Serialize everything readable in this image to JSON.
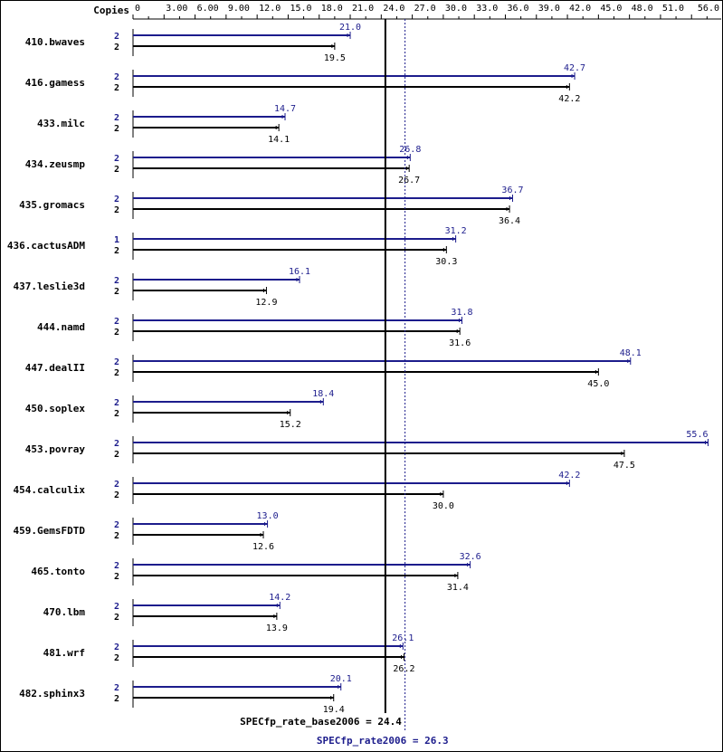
{
  "chart_data": {
    "type": "bar",
    "orientation": "horizontal",
    "copies_header": "Copies",
    "x_ticks": [
      "0",
      "3.00",
      "6.00",
      "9.00",
      "12.0",
      "15.0",
      "18.0",
      "21.0",
      "24.0",
      "27.0",
      "30.0",
      "33.0",
      "36.0",
      "39.0",
      "42.0",
      "45.0",
      "48.0",
      "51.0",
      "56.0"
    ],
    "x_tick_values": [
      0,
      3,
      6,
      9,
      12,
      15,
      18,
      21,
      24,
      27,
      30,
      33,
      36,
      39,
      42,
      45,
      48,
      51,
      56
    ],
    "xlim": [
      0,
      56
    ],
    "grid": false,
    "colors": {
      "peak": "#1c1c8c",
      "base": "#000000"
    },
    "categories": [
      "410.bwaves",
      "416.gamess",
      "433.milc",
      "434.zeusmp",
      "435.gromacs",
      "436.cactusADM",
      "437.leslie3d",
      "444.namd",
      "447.dealII",
      "450.soplex",
      "453.povray",
      "454.calculix",
      "459.GemsFDTD",
      "465.tonto",
      "470.lbm",
      "481.wrf",
      "482.sphinx3"
    ],
    "series": [
      {
        "role": "peak",
        "values": [
          21.0,
          42.7,
          14.7,
          26.8,
          36.7,
          31.2,
          16.1,
          31.8,
          48.1,
          18.4,
          55.6,
          42.2,
          13.0,
          32.6,
          14.2,
          26.1,
          20.1
        ],
        "labels": [
          "21.0",
          "42.7",
          "14.7",
          "26.8",
          "36.7",
          "31.2",
          "16.1",
          "31.8",
          "48.1",
          "18.4",
          "55.6",
          "42.2",
          "13.0",
          "32.6",
          "14.2",
          "26.1",
          "20.1"
        ],
        "copies": [
          "2",
          "2",
          "2",
          "2",
          "2",
          "1",
          "2",
          "2",
          "2",
          "2",
          "2",
          "2",
          "2",
          "2",
          "2",
          "2",
          "2"
        ]
      },
      {
        "role": "base",
        "values": [
          19.5,
          42.2,
          14.1,
          26.7,
          36.4,
          30.3,
          12.9,
          31.6,
          45.0,
          15.2,
          47.5,
          30.0,
          12.6,
          31.4,
          13.9,
          26.2,
          19.4
        ],
        "labels": [
          "19.5",
          "42.2",
          "14.1",
          "26.7",
          "36.4",
          "30.3",
          "12.9",
          "31.6",
          "45.0",
          "15.2",
          "47.5",
          "30.0",
          "12.6",
          "31.4",
          "13.9",
          "26.2",
          "19.4"
        ],
        "copies": [
          "2",
          "2",
          "2",
          "2",
          "2",
          "2",
          "2",
          "2",
          "2",
          "2",
          "2",
          "2",
          "2",
          "2",
          "2",
          "2",
          "2"
        ]
      }
    ],
    "reference_lines": [
      {
        "role": "base",
        "value": 24.4,
        "label": "SPECfp_rate_base2006 = 24.4",
        "style": "solid"
      },
      {
        "role": "peak",
        "value": 26.3,
        "label": "SPECfp_rate2006 = 26.3",
        "style": "dotted"
      }
    ]
  }
}
